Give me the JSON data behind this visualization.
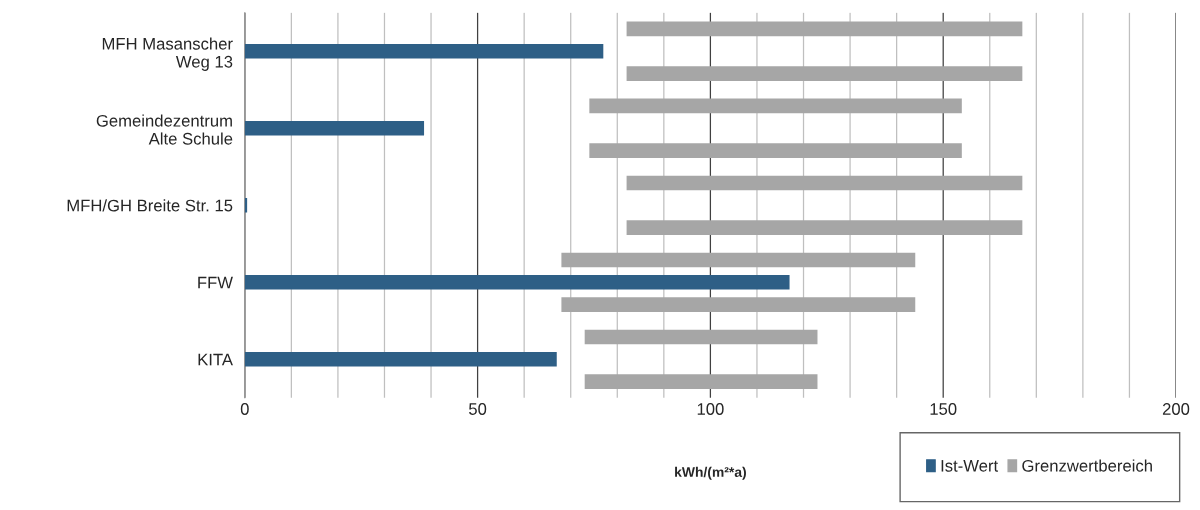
{
  "chart_data": {
    "type": "bar",
    "orientation": "horizontal",
    "xlabel": "kWh/(m²*a)",
    "categories": [
      "MFH Masanscher\nWeg 13",
      "Gemeindezentrum\nAlte Schule",
      "MFH/GH Breite Str. 15",
      "FFW",
      "KITA"
    ],
    "series": [
      {
        "color": "#a6a6a6",
        "base": [
          82,
          74,
          82,
          68,
          73
        ],
        "values": [
          85,
          80,
          85,
          76,
          50
        ]
      },
      {
        "name": "Ist-Wert",
        "color": "#2e5f86",
        "values": [
          77,
          38.5,
          0.5,
          117,
          67
        ]
      },
      {
        "name": "Grenzwertbereich",
        "color": "#a6a6a6",
        "base": [
          82,
          74,
          82,
          68,
          73
        ],
        "values": [
          85,
          80,
          85,
          76,
          50
        ]
      }
    ],
    "xlim": [
      0,
      200
    ],
    "xticks": [
      0,
      {
        "value": 10,
        "label": null
      },
      {
        "value": 20,
        "label": null
      },
      {
        "value": 30,
        "label": null
      },
      {
        "value": 40,
        "label": null
      },
      50,
      {
        "value": 60,
        "label": null
      },
      {
        "value": 70,
        "label": null
      },
      {
        "value": 80,
        "label": null
      },
      {
        "value": 90,
        "label": null
      },
      100,
      {
        "value": 110,
        "label": null
      },
      {
        "value": 120,
        "label": null
      },
      {
        "value": 130,
        "label": null
      },
      {
        "value": 140,
        "label": null
      },
      150,
      {
        "value": 160,
        "label": null
      },
      {
        "value": 170,
        "label": null
      },
      {
        "value": 180,
        "label": null
      },
      {
        "value": 190,
        "label": null
      },
      200
    ],
    "grid": "x",
    "legend": "bottom right"
  }
}
